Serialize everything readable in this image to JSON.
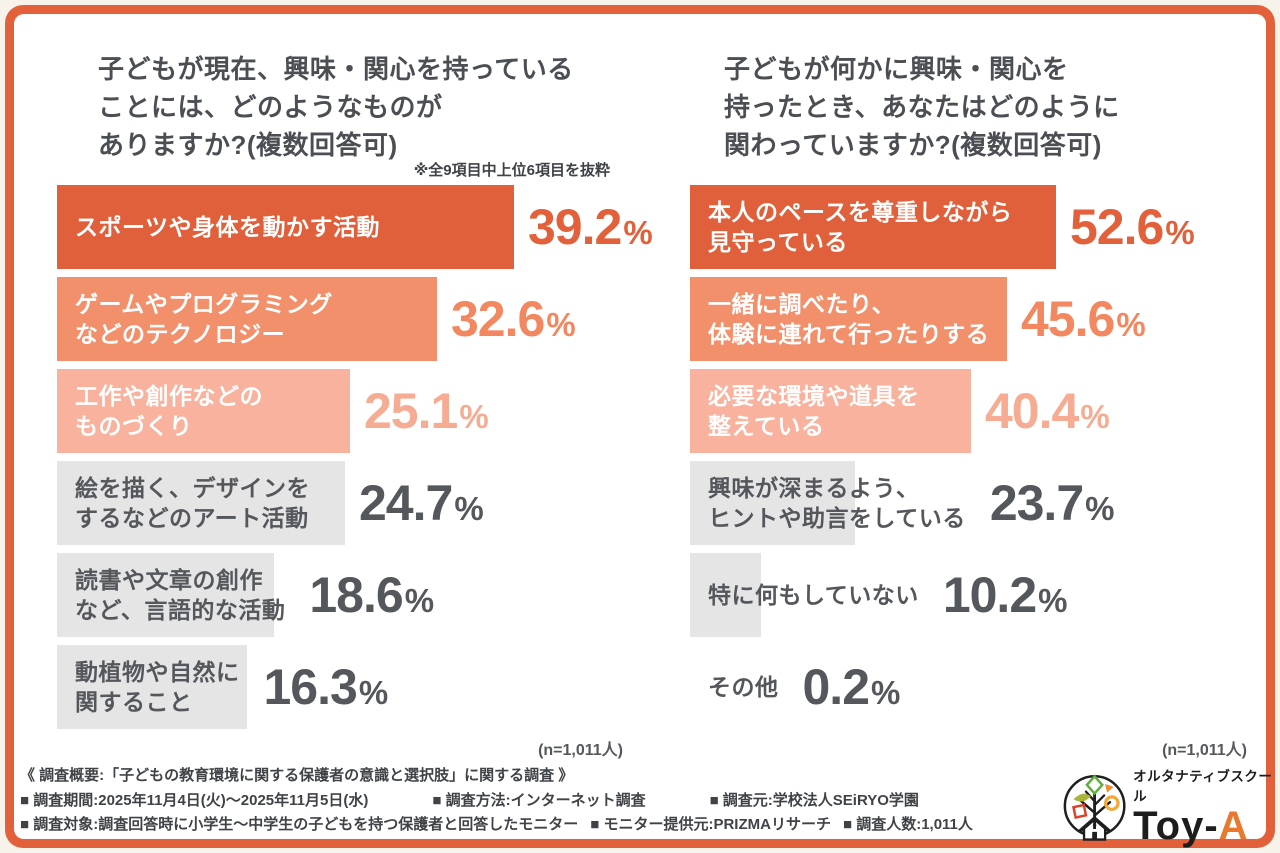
{
  "palette": {
    "frame": "#E2603A",
    "bar_dark": "#E0603B",
    "bar_mid": "#F3906C",
    "bar_light": "#F8B29D",
    "bar_gray": "#E5E5E6",
    "value_dark": "#E2603A",
    "value_mid": "#F28760",
    "value_light": "#F6AC93",
    "text_gray": "#54575B"
  },
  "charts": [
    {
      "title_display": "子どもが現在、興味・関心を持っている\nことには、どのようなものが\nありますか?(複数回答可)",
      "note": "※全9項目中上位6項目を抜粋",
      "n_label": "(n=1,011人)"
    },
    {
      "title_display": "子どもが何かに興味・関心を\n持ったとき、あなたはどのように\n関わっていますか?(複数回答可)",
      "n_label": "(n=1,011人)"
    }
  ],
  "chart_data": [
    {
      "type": "bar",
      "orientation": "horizontal",
      "title": "子どもが現在、興味・関心を持っていることには、どのようなものがありますか?(複数回答可)",
      "note": "※全9項目中上位6項目を抜粋",
      "sample_label": "(n=1,011人)",
      "unit": "%",
      "xlim": [
        0,
        55
      ],
      "categories": [
        "スポーツや身体を動かす活動",
        "ゲームやプログラミングなどのテクノロジー",
        "工作や創作などのものづくり",
        "絵を描く、デザインをするなどのアート活動",
        "読書や文章の創作など、言語的な活動",
        "動植物や自然に関すること"
      ],
      "categories_display": [
        "スポーツや身体を動かす活動",
        "ゲームやプログラミング\nなどのテクノロジー",
        "工作や創作などの\nものづくり",
        "絵を描く、デザインを\nするなどのアート活動",
        "読書や文章の創作\nなど、言語的な活動",
        "動植物や自然に\n関すること"
      ],
      "values": [
        39.2,
        32.6,
        25.1,
        24.7,
        18.6,
        16.3
      ],
      "value_labels": [
        "39.2%",
        "32.6%",
        "25.1%",
        "24.7%",
        "18.6%",
        "16.3%"
      ],
      "styles": [
        "dark",
        "mid",
        "light",
        "gray",
        "gray",
        "gray"
      ]
    },
    {
      "type": "bar",
      "orientation": "horizontal",
      "title": "子どもが何かに興味・関心を持ったとき、あなたはどのように関わっていますか?(複数回答可)",
      "sample_label": "(n=1,011人)",
      "unit": "%",
      "xlim": [
        0,
        60
      ],
      "categories": [
        "本人のペースを尊重しながら見守っている",
        "一緒に調べたり、体験に連れて行ったりする",
        "必要な環境や道具を整えている",
        "興味が深まるよう、ヒントや助言をしている",
        "特に何もしていない",
        "その他"
      ],
      "categories_display": [
        "本人のペースを尊重しながら\n見守っている",
        "一緒に調べたり、\n体験に連れて行ったりする",
        "必要な環境や道具を\n整えている",
        "興味が深まるよう、\nヒントや助言をしている",
        "特に何もしていない",
        "その他"
      ],
      "values": [
        52.6,
        45.6,
        40.4,
        23.7,
        10.2,
        0.2
      ],
      "value_labels": [
        "52.6%",
        "45.6%",
        "40.4%",
        "23.7%",
        "10.2%",
        "0.2%"
      ],
      "styles": [
        "dark",
        "mid",
        "light",
        "gray",
        "gray",
        "gray"
      ]
    }
  ],
  "footer": {
    "heading": "《 調査概要:「子どもの教育環境に関する保護者の意識と選択肢」に関する調査 》",
    "line2": [
      "■ 調査期間:2025年11月4日(火)〜2025年11月5日(水)",
      "■ 調査方法:インターネット調査",
      "■ 調査元:学校法人SEiRYO学園"
    ],
    "line3": [
      "■ 調査対象:調査回答時に小学生〜中学生の子どもを持つ保護者と回答したモニター",
      "■ モニター提供元:PRIZMAリサーチ",
      "■ 調査人数:1,011人"
    ]
  },
  "logo": {
    "school_type": "オルタナティブスクール",
    "brand": "Toy-A",
    "brand_prefix": "Toy-",
    "brand_suffix": "A"
  }
}
